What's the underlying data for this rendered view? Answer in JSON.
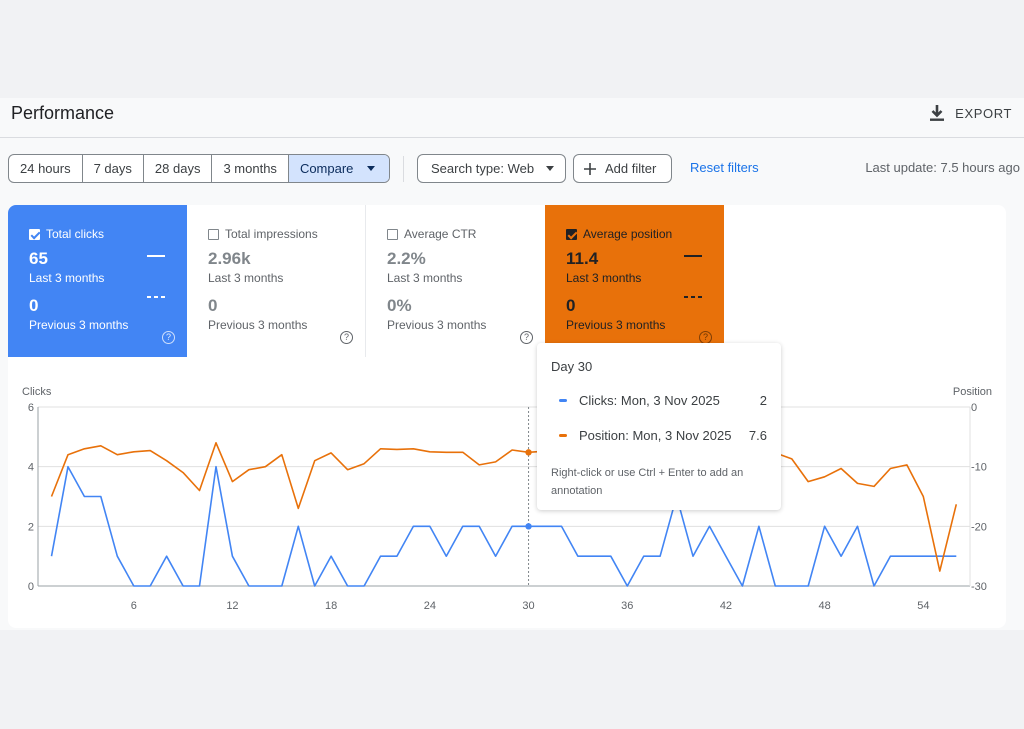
{
  "header": {
    "title": "Performance",
    "export_label": "EXPORT"
  },
  "toolbar": {
    "ranges": [
      "24 hours",
      "7 days",
      "28 days",
      "3 months"
    ],
    "compare_label": "Compare",
    "search_type_label": "Search type: Web",
    "add_filter_label": "Add filter",
    "reset_filters_label": "Reset filters",
    "last_update": "Last update: 7.5 hours ago"
  },
  "metrics": {
    "clicks": {
      "label": "Total clicks",
      "value": "65",
      "period": "Last 3 months",
      "prev_value": "0",
      "prev_period": "Previous 3 months",
      "checked": true,
      "color": "#4285f4"
    },
    "impressions": {
      "label": "Total impressions",
      "value": "2.96k",
      "period": "Last 3 months",
      "prev_value": "0",
      "prev_period": "Previous 3 months",
      "checked": false
    },
    "ctr": {
      "label": "Average CTR",
      "value": "2.2%",
      "period": "Last 3 months",
      "prev_value": "0%",
      "prev_period": "Previous 3 months",
      "checked": false
    },
    "position": {
      "label": "Average position",
      "value": "11.4",
      "period": "Last 3 months",
      "prev_value": "0",
      "prev_period": "Previous 3 months",
      "checked": true,
      "color": "#e8710a"
    }
  },
  "tooltip": {
    "title": "Day 30",
    "rows": [
      {
        "label": "Clicks: Mon, 3 Nov 2025",
        "value": "2",
        "color": "#4285f4"
      },
      {
        "label": "Position: Mon, 3 Nov 2025",
        "value": "7.6",
        "color": "#e8710a"
      }
    ],
    "note": "Right-click or use Ctrl + Enter to add an annotation"
  },
  "chart_data": {
    "type": "line",
    "left_axis_label": "Clicks",
    "right_axis_label": "Position",
    "left_ticks": [
      "6",
      "4",
      "2",
      "0"
    ],
    "right_ticks": [
      "0",
      "-10",
      "-20",
      "-30"
    ],
    "x_ticks": [
      "6",
      "12",
      "18",
      "24",
      "30",
      "36",
      "42",
      "48",
      "54"
    ],
    "ylim_left": [
      0,
      6
    ],
    "ylim_right": [
      -30,
      0
    ],
    "highlight_day": 30,
    "x": [
      1,
      2,
      3,
      4,
      5,
      6,
      7,
      8,
      9,
      10,
      11,
      12,
      13,
      14,
      15,
      16,
      17,
      18,
      19,
      20,
      21,
      22,
      23,
      24,
      25,
      26,
      27,
      28,
      29,
      30,
      31,
      32,
      33,
      34,
      35,
      36,
      37,
      38,
      39,
      40,
      41,
      42,
      43,
      44,
      45,
      46,
      47,
      48,
      49,
      50,
      51,
      52,
      53,
      54,
      55,
      56
    ],
    "series": [
      {
        "name": "Clicks",
        "axis": "left",
        "color": "#4285f4",
        "values": [
          1,
          4,
          3,
          3,
          1,
          0,
          0,
          1,
          0,
          0,
          4,
          1,
          0,
          0,
          0,
          2,
          0,
          1,
          0,
          0,
          1,
          1,
          2,
          2,
          1,
          2,
          2,
          1,
          2,
          2,
          2,
          2,
          1,
          1,
          1,
          0,
          1,
          1,
          3,
          1,
          2,
          1,
          0,
          2,
          0,
          0,
          0,
          2,
          1,
          2,
          0,
          1,
          1,
          1,
          1,
          1
        ]
      },
      {
        "name": "Position",
        "axis": "right",
        "color": "#e8710a",
        "values": [
          -15,
          -8,
          -7,
          -6.5,
          -8,
          -7.5,
          -7.3,
          -9,
          -11,
          -14,
          -6,
          -12.5,
          -10.5,
          -10,
          -8,
          -17,
          -9,
          -7.7,
          -10.5,
          -9.5,
          -7,
          -7.1,
          -7,
          -7.5,
          -7.6,
          -7.6,
          -9.7,
          -9.2,
          -7.2,
          -7.6,
          -7.4,
          -7.8,
          -7.3,
          -7.5,
          -7.6,
          -7.5,
          -7.5,
          -7.3,
          -12.3,
          -11.8,
          -7.1,
          -15.6,
          -15.4,
          -13.3,
          -7.7,
          -8.7,
          -12.5,
          -11.7,
          -10.3,
          -12.8,
          -13.3,
          -10.3,
          -9.7,
          -15,
          -27.5,
          -16.3
        ]
      }
    ]
  }
}
